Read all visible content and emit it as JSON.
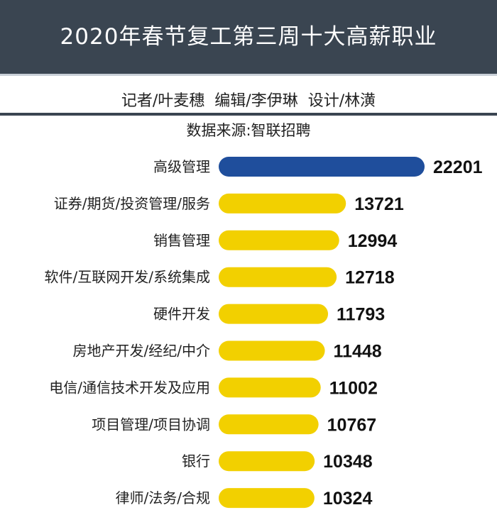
{
  "header": {
    "title": "2020年春节复工第三周十大高薪职业",
    "credits": "记者/叶麦穗  编辑/李伊琳  设计/林潢",
    "source": "数据来源:智联招聘"
  },
  "colors": {
    "header": "#3a4551",
    "highlight": "#1f4e9c",
    "bar": "#f2d000"
  },
  "chart_data": {
    "type": "bar",
    "orientation": "horizontal",
    "title": "2020年春节复工第三周十大高薪职业",
    "categories": [
      "高级管理",
      "证券/期货/投资管理/服务",
      "销售管理",
      "软件/互联网开发/系统集成",
      "硬件开发",
      "房地产开发/经纪/中介",
      "电信/通信技术开发及应用",
      "项目管理/项目协调",
      "银行",
      "律师/法务/合规"
    ],
    "values": [
      22201,
      13721,
      12994,
      12718,
      11793,
      11448,
      11002,
      10767,
      10348,
      10324
    ],
    "xlim": [
      0,
      22201
    ],
    "grid": false,
    "data_labels": true
  }
}
